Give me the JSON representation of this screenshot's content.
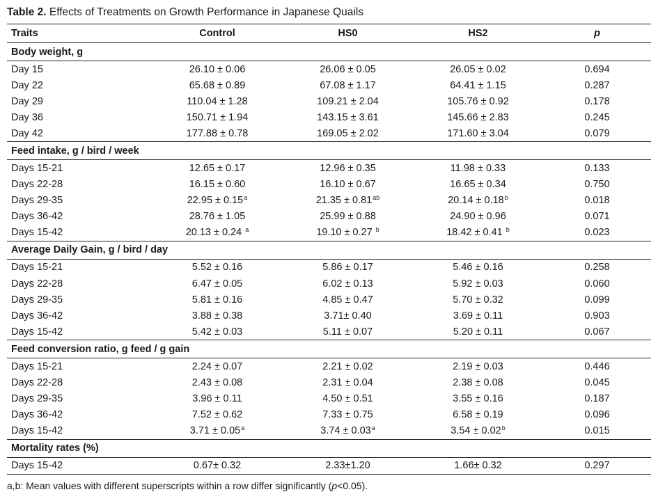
{
  "caption": {
    "label": "Table 2.",
    "text": " Effects of Treatments on Growth Performance in Japanese Quails"
  },
  "headers": [
    "Traits",
    "Control",
    "HS0",
    "HS2",
    "p"
  ],
  "groups": [
    {
      "name": "Body weight, g",
      "rows": [
        {
          "trait": "Day 15",
          "cells": [
            {
              "v": "26.10 ± 0.06",
              "s": ""
            },
            {
              "v": "26.06 ± 0.05",
              "s": ""
            },
            {
              "v": "26.05 ± 0.02",
              "s": ""
            }
          ],
          "p": "0.694"
        },
        {
          "trait": "Day 22",
          "cells": [
            {
              "v": "65.68 ± 0.89",
              "s": ""
            },
            {
              "v": "67.08 ± 1.17",
              "s": ""
            },
            {
              "v": "64.41 ± 1.15",
              "s": ""
            }
          ],
          "p": "0.287"
        },
        {
          "trait": "Day 29",
          "cells": [
            {
              "v": "110.04 ± 1.28",
              "s": ""
            },
            {
              "v": "109.21 ± 2.04",
              "s": ""
            },
            {
              "v": "105.76 ± 0.92",
              "s": ""
            }
          ],
          "p": "0.178"
        },
        {
          "trait": "Day 36",
          "cells": [
            {
              "v": "150.71 ± 1.94",
              "s": ""
            },
            {
              "v": "143.15 ± 3.61",
              "s": ""
            },
            {
              "v": "145.66 ± 2.83",
              "s": ""
            }
          ],
          "p": "0.245"
        },
        {
          "trait": "Day 42",
          "cells": [
            {
              "v": "177.88 ± 0.78",
              "s": ""
            },
            {
              "v": "169.05 ± 2.02",
              "s": ""
            },
            {
              "v": "171.60 ± 3.04",
              "s": ""
            }
          ],
          "p": "0.079"
        }
      ]
    },
    {
      "name": "Feed intake, g / bird / week",
      "rows": [
        {
          "trait": "Days 15-21",
          "cells": [
            {
              "v": "12.65 ± 0.17",
              "s": ""
            },
            {
              "v": "12.96 ± 0.35",
              "s": ""
            },
            {
              "v": "11.98 ± 0.33",
              "s": ""
            }
          ],
          "p": "0.133"
        },
        {
          "trait": "Days 22-28",
          "cells": [
            {
              "v": "16.15 ± 0.60",
              "s": ""
            },
            {
              "v": "16.10 ± 0.67",
              "s": ""
            },
            {
              "v": "16.65 ± 0.34",
              "s": ""
            }
          ],
          "p": "0.750"
        },
        {
          "trait": "Days 29-35",
          "cells": [
            {
              "v": "22.95 ± 0.15",
              "s": "a"
            },
            {
              "v": "21.35 ± 0.81",
              "s": "ab"
            },
            {
              "v": "20.14 ± 0.18",
              "s": "b"
            }
          ],
          "p": "0.018"
        },
        {
          "trait": "Days 36-42",
          "cells": [
            {
              "v": "28.76 ± 1.05",
              "s": ""
            },
            {
              "v": "25.99 ± 0.88",
              "s": ""
            },
            {
              "v": "24.90 ± 0.96",
              "s": ""
            }
          ],
          "p": "0.071"
        },
        {
          "trait": "Days 15-42",
          "cells": [
            {
              "v": "20.13 ± 0.24 ",
              "s": "a"
            },
            {
              "v": "19.10 ± 0.27 ",
              "s": "b"
            },
            {
              "v": "18.42 ± 0.41 ",
              "s": "b"
            }
          ],
          "p": "0.023"
        }
      ]
    },
    {
      "name": "Average Daily Gain, g / bird / day",
      "rows": [
        {
          "trait": "Days 15-21",
          "cells": [
            {
              "v": "5.52 ± 0.16",
              "s": ""
            },
            {
              "v": "5.86 ± 0.17",
              "s": ""
            },
            {
              "v": "5.46 ± 0.16",
              "s": ""
            }
          ],
          "p": "0.258"
        },
        {
          "trait": "Days 22-28",
          "cells": [
            {
              "v": "6.47 ± 0.05",
              "s": ""
            },
            {
              "v": "6.02 ± 0.13",
              "s": ""
            },
            {
              "v": "5.92 ± 0.03",
              "s": ""
            }
          ],
          "p": "0.060"
        },
        {
          "trait": "Days 29-35",
          "cells": [
            {
              "v": "5.81 ± 0.16",
              "s": ""
            },
            {
              "v": "4.85 ± 0.47",
              "s": ""
            },
            {
              "v": "5.70 ± 0.32",
              "s": ""
            }
          ],
          "p": "0.099"
        },
        {
          "trait": "Days 36-42",
          "cells": [
            {
              "v": "3.88 ± 0.38",
              "s": ""
            },
            {
              "v": "3.71± 0.40",
              "s": ""
            },
            {
              "v": "3.69 ± 0.11",
              "s": ""
            }
          ],
          "p": "0.903"
        },
        {
          "trait": "Days 15-42",
          "cells": [
            {
              "v": "5.42 ± 0.03",
              "s": ""
            },
            {
              "v": "5.11 ± 0.07",
              "s": ""
            },
            {
              "v": "5.20 ± 0.11",
              "s": ""
            }
          ],
          "p": "0.067"
        }
      ]
    },
    {
      "name": "Feed conversion ratio, g feed / g gain",
      "rows": [
        {
          "trait": "Days 15-21",
          "cells": [
            {
              "v": "2.24 ± 0.07",
              "s": ""
            },
            {
              "v": "2.21 ± 0.02",
              "s": ""
            },
            {
              "v": "2.19 ± 0.03",
              "s": ""
            }
          ],
          "p": "0.446"
        },
        {
          "trait": "Days 22-28",
          "cells": [
            {
              "v": "2.43 ± 0.08",
              "s": ""
            },
            {
              "v": "2.31 ± 0.04",
              "s": ""
            },
            {
              "v": "2.38 ± 0.08",
              "s": ""
            }
          ],
          "p": "0.045"
        },
        {
          "trait": "Days 29-35",
          "cells": [
            {
              "v": "3.96 ± 0.11",
              "s": ""
            },
            {
              "v": "4.50 ± 0.51",
              "s": ""
            },
            {
              "v": "3.55 ± 0.16",
              "s": ""
            }
          ],
          "p": "0.187"
        },
        {
          "trait": "Days 36-42",
          "cells": [
            {
              "v": "7.52 ± 0.62",
              "s": ""
            },
            {
              "v": "7.33 ± 0.75",
              "s": ""
            },
            {
              "v": "6.58 ± 0.19",
              "s": ""
            }
          ],
          "p": "0.096"
        },
        {
          "trait": "Days 15-42",
          "cells": [
            {
              "v": "3.71 ± 0.05",
              "s": "a"
            },
            {
              "v": "3.74 ± 0.03",
              "s": "a"
            },
            {
              "v": "3.54 ± 0.02",
              "s": "b"
            }
          ],
          "p": "0.015"
        }
      ]
    },
    {
      "name": "Mortality rates  (%)",
      "rows": [
        {
          "trait": "Days 15-42",
          "cells": [
            {
              "v": "0.67± 0.32",
              "s": ""
            },
            {
              "v": "2.33±1.20",
              "s": ""
            },
            {
              "v": "1.66± 0.32",
              "s": ""
            }
          ],
          "p": "0.297"
        }
      ]
    }
  ],
  "footnote": {
    "before": "a,b: Mean values with different superscripts within a row differ significantly (",
    "italic": "p",
    "after": "<0.05)."
  }
}
